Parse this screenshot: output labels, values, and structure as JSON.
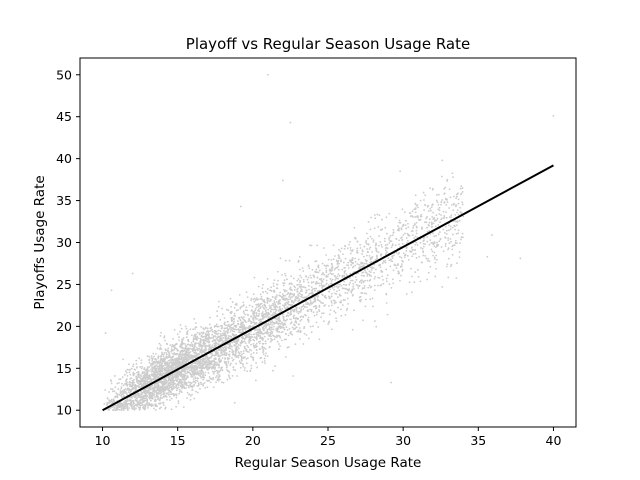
{
  "chart_data": {
    "type": "scatter",
    "title": "Playoff vs Regular Season Usage Rate",
    "xlabel": "Regular Season Usage Rate",
    "ylabel": "Playoffs Usage Rate",
    "xlim": [
      8.5,
      41.5
    ],
    "ylim": [
      8.0,
      52.0
    ],
    "xticks": [
      10,
      15,
      20,
      25,
      30,
      35,
      40
    ],
    "yticks": [
      10,
      15,
      20,
      25,
      30,
      35,
      40,
      45,
      50
    ],
    "grid": false,
    "legend": "none",
    "colors": {
      "points": "#cccccc",
      "fit_line": "#000000",
      "axes": "#000000"
    },
    "point_cloud": {
      "count": 5000,
      "x_range": [
        10,
        40
      ],
      "trend_slope": 0.98,
      "trend_intercept": 0.2,
      "spread_sd": 2.6
    },
    "notable_points": [
      {
        "x": 21.0,
        "y": 50.0
      },
      {
        "x": 22.5,
        "y": 44.3
      },
      {
        "x": 40.0,
        "y": 45.1
      },
      {
        "x": 22.0,
        "y": 37.4
      },
      {
        "x": 29.2,
        "y": 13.3
      },
      {
        "x": 10.6,
        "y": 24.3
      },
      {
        "x": 37.8,
        "y": 28.1
      },
      {
        "x": 35.6,
        "y": 28.3
      },
      {
        "x": 19.2,
        "y": 34.3
      },
      {
        "x": 29.8,
        "y": 38.5
      },
      {
        "x": 12.0,
        "y": 26.3
      },
      {
        "x": 10.2,
        "y": 19.2
      }
    ],
    "fit_line": {
      "x": [
        10,
        40
      ],
      "y": [
        10.0,
        39.2
      ]
    }
  }
}
